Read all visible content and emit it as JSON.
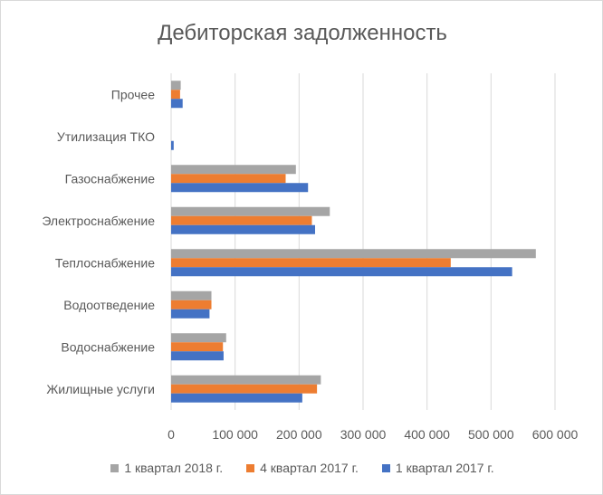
{
  "chart_data": {
    "type": "bar",
    "orientation": "horizontal",
    "title": "Дебиторская задолженность",
    "categories": [
      "Прочее",
      "Утилизация ТКО",
      "Газоснабжение",
      "Электроснабжение",
      "Теплоснабжение",
      "Водоотведение",
      "Водоснабжение",
      "Жилищные услуги"
    ],
    "series": [
      {
        "name": "1 квартал 2018 г.",
        "color": "#a5a5a5",
        "values": [
          15000,
          0,
          195000,
          248000,
          570000,
          63000,
          86000,
          234000
        ]
      },
      {
        "name": "4 квартал 2017 г.",
        "color": "#ed7d31",
        "values": [
          14000,
          0,
          179000,
          220000,
          437000,
          63000,
          81000,
          228000
        ]
      },
      {
        "name": "1 квартал 2017 г.",
        "color": "#4472c4",
        "values": [
          18000,
          4000,
          214000,
          225000,
          533000,
          60000,
          82000,
          205000
        ]
      }
    ],
    "xlim": [
      0,
      600000
    ],
    "xticks": [
      "0",
      "100 000",
      "200 000",
      "300 000",
      "400 000",
      "500 000",
      "600 000"
    ],
    "grid": true,
    "legend_position": "bottom"
  }
}
